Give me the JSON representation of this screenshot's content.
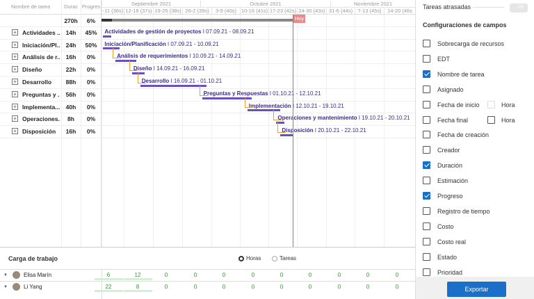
{
  "grid": {
    "columns": [
      "Nombre de tarea",
      "Durac",
      "Progres"
    ],
    "summary": {
      "duration": "270h",
      "progress": "6%"
    },
    "rows": [
      {
        "name": "Actividades ...",
        "duration": "14h",
        "progress": "45%",
        "label": "Actividades de gestión de proyectos",
        "start": "07.09.21",
        "end": "08.09.21"
      },
      {
        "name": "Iniciación/Pl...",
        "duration": "24h",
        "progress": "50%",
        "label": "Iniciación/Planificación",
        "start": "07.09.21",
        "end": "10.09.21"
      },
      {
        "name": "Análisis de r...",
        "duration": "16h",
        "progress": "0%",
        "label": "Análisis de requerimientos",
        "start": "10.09.21",
        "end": "14.09.21"
      },
      {
        "name": "Diseño",
        "duration": "22h",
        "progress": "0%",
        "label": "Diseño",
        "start": "14.09.21",
        "end": "16.09.21"
      },
      {
        "name": "Desarrollo",
        "duration": "88h",
        "progress": "0%",
        "label": "Desarrollo",
        "start": "16.09.21",
        "end": "01.10.21"
      },
      {
        "name": "Preguntas y ...",
        "duration": "56h",
        "progress": "0%",
        "label": "Preguntas y Respuestas",
        "start": "01.10.21",
        "end": "12.10.21"
      },
      {
        "name": "Implementa...",
        "duration": "40h",
        "progress": "0%",
        "label": "Implementación",
        "start": "12.10.21",
        "end": "19.10.21"
      },
      {
        "name": "Operaciones...",
        "duration": "8h",
        "progress": "0%",
        "label": "Operaciones y mantenimiento",
        "start": "19.10.21",
        "end": "20.10.21"
      },
      {
        "name": "Disposición",
        "duration": "16h",
        "progress": "0%",
        "label": "Disposición",
        "start": "20.10.21",
        "end": "22.10.21"
      }
    ]
  },
  "timeline": {
    "months": [
      "Septiembre 2021",
      "Octubre 2021",
      "Noviembre 2021"
    ],
    "weeks": [
      "-11 (36s)",
      "12-18 (37s)",
      "19-25 (38s)",
      "26-2 (39s)",
      "3-9 (40s)",
      "10-16 (41s)",
      "17-23 (42s)",
      "24-30 (43s)",
      "31-6 (44s)",
      "7-13 (45s)",
      "14-20 (46s"
    ],
    "today": "Hoy"
  },
  "workload": {
    "title": "Carga de trabajo",
    "options": [
      "Horas",
      "Tareas"
    ],
    "resources": [
      {
        "name": "Elisa Marín",
        "values": [
          6,
          12,
          0,
          0,
          0,
          0,
          0,
          0,
          0,
          0,
          0
        ]
      },
      {
        "name": "Li Yang",
        "values": [
          22,
          8,
          0,
          0,
          0,
          0,
          0,
          0,
          0,
          0,
          0
        ]
      }
    ]
  },
  "settings": {
    "overdue": "Tareas atrasadas",
    "toggle": "Off",
    "title": "Configuraciones de campos",
    "fields": [
      {
        "label": "Sobrecarga de recursos",
        "checked": false
      },
      {
        "label": "EDT",
        "checked": false
      },
      {
        "label": "Nombre de tarea",
        "checked": true
      },
      {
        "label": "Asignado",
        "checked": false
      },
      {
        "label": "Fecha de inicio",
        "checked": false,
        "extra": "Hora"
      },
      {
        "label": "Fecha final",
        "checked": false,
        "extra": "Hora"
      },
      {
        "label": "Fecha de creación",
        "checked": false
      },
      {
        "label": "Creador",
        "checked": false
      },
      {
        "label": "Duración",
        "checked": true
      },
      {
        "label": "Estimación",
        "checked": false
      },
      {
        "label": "Progreso",
        "checked": true
      },
      {
        "label": "Registro de tiempo",
        "checked": false
      },
      {
        "label": "Costo",
        "checked": false
      },
      {
        "label": "Costo real",
        "checked": false
      },
      {
        "label": "Estado",
        "checked": false
      },
      {
        "label": "Prioridad",
        "checked": false
      }
    ],
    "export": "Exportar"
  }
}
